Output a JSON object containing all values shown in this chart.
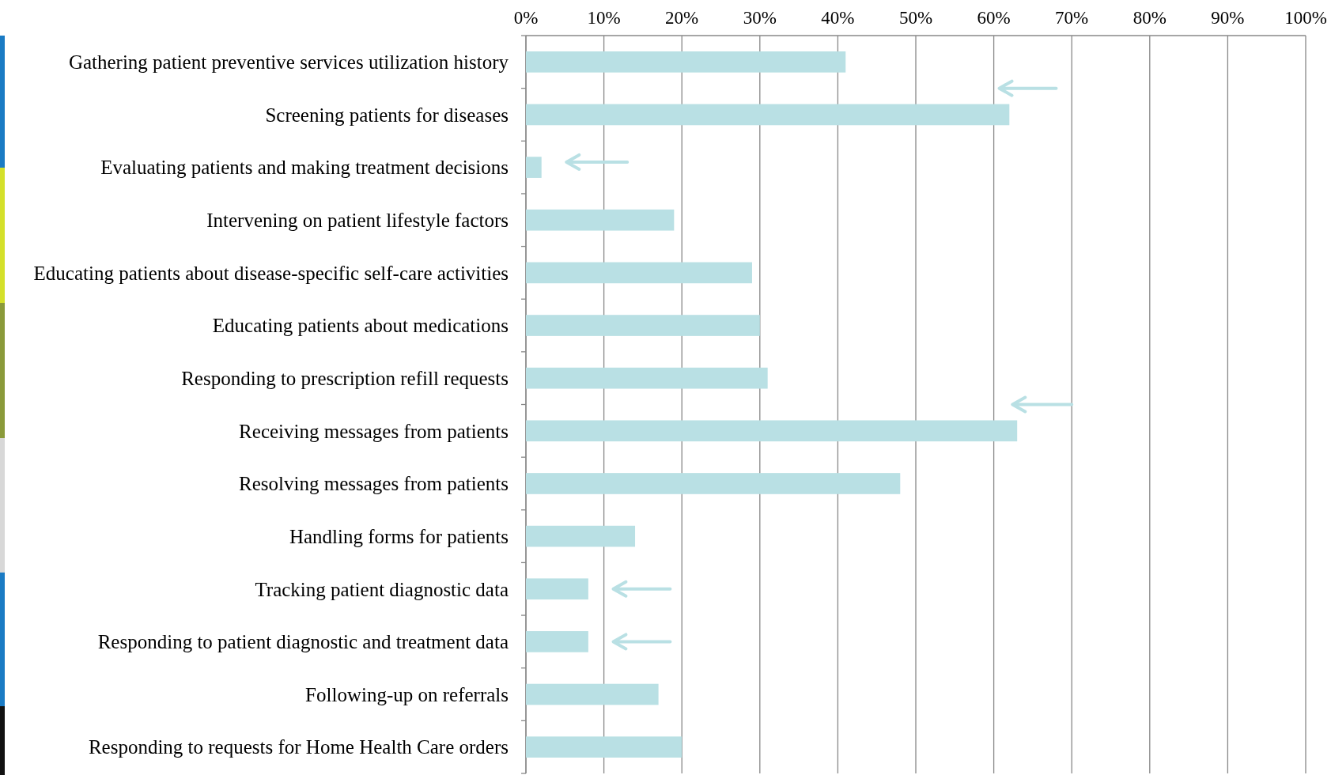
{
  "chart_data": {
    "type": "bar",
    "orientation": "horizontal",
    "categories": [
      "Gathering patient preventive services utilization history",
      "Screening patients for diseases",
      "Evaluating patients and making treatment decisions",
      "Intervening on patient lifestyle factors",
      "Educating patients about disease-specific self-care activities",
      "Educating patients about medications",
      "Responding to prescription refill requests",
      "Receiving messages from patients",
      "Resolving messages from patients",
      "Handling forms for patients",
      "Tracking patient diagnostic data",
      "Responding to patient diagnostic and treatment data",
      "Following-up on referrals",
      "Responding to requests for Home Health Care orders"
    ],
    "values": [
      41,
      62,
      2,
      19,
      29,
      30,
      31,
      63,
      48,
      14,
      8,
      8,
      17,
      20
    ],
    "color": "#b9e0e4",
    "xlim": [
      0,
      100
    ],
    "xticks": [
      {
        "value": 0,
        "label": "0%"
      },
      {
        "value": 10,
        "label": "10%"
      },
      {
        "value": 20,
        "label": "20%"
      },
      {
        "value": 30,
        "label": "30%"
      },
      {
        "value": 40,
        "label": "40%"
      },
      {
        "value": 50,
        "label": "50%"
      },
      {
        "value": 60,
        "label": "60%"
      },
      {
        "value": 70,
        "label": "70%"
      },
      {
        "value": 80,
        "label": "80%"
      },
      {
        "value": 90,
        "label": "90%"
      },
      {
        "value": 100,
        "label": "100%"
      }
    ],
    "grid": "x"
  }
}
